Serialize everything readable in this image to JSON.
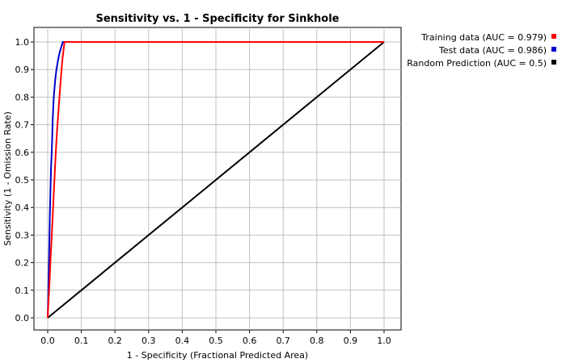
{
  "chart_data": {
    "type": "line",
    "title": "Sensitivity vs. 1 - Specificity for Sinkhole",
    "xlabel": "1 - Specificity  (Fractional Predicted Area)",
    "ylabel": "Sensitivity  (1 - Omission Rate)",
    "xlim": [
      0,
      1
    ],
    "ylim": [
      0,
      1
    ],
    "grid": true,
    "legend_position": "right",
    "x_ticks": [
      "0.0",
      "0.1",
      "0.2",
      "0.3",
      "0.4",
      "0.5",
      "0.6",
      "0.7",
      "0.8",
      "0.9",
      "1.0"
    ],
    "y_ticks": [
      "0.0",
      "0.1",
      "0.2",
      "0.3",
      "0.4",
      "0.5",
      "0.6",
      "0.7",
      "0.8",
      "0.9",
      "1.0"
    ],
    "series": [
      {
        "name": "Training data (AUC = 0.979)",
        "color": "#ff0000",
        "x": [
          0.0,
          0.002,
          0.005,
          0.008,
          0.012,
          0.016,
          0.02,
          0.024,
          0.028,
          0.032,
          0.036,
          0.04,
          0.044,
          0.048,
          0.05,
          0.06,
          0.2,
          0.5,
          0.8,
          1.0
        ],
        "y": [
          0.0,
          0.05,
          0.12,
          0.2,
          0.3,
          0.4,
          0.5,
          0.6,
          0.68,
          0.75,
          0.82,
          0.88,
          0.94,
          0.98,
          1.0,
          1.0,
          1.0,
          1.0,
          1.0,
          1.0
        ]
      },
      {
        "name": "Test data (AUC = 0.986)",
        "color": "#0000cc",
        "x": [
          0.0,
          0.002,
          0.004,
          0.006,
          0.008,
          0.01,
          0.012,
          0.015,
          0.018,
          0.022,
          0.026,
          0.03,
          0.035,
          0.04,
          0.045,
          0.05,
          0.1,
          0.5,
          1.0
        ],
        "y": [
          0.0,
          0.1,
          0.22,
          0.35,
          0.45,
          0.55,
          0.6,
          0.72,
          0.8,
          0.86,
          0.9,
          0.93,
          0.96,
          0.98,
          1.0,
          1.0,
          1.0,
          1.0,
          1.0
        ]
      },
      {
        "name": "Random Prediction (AUC = 0.5)",
        "color": "#000000",
        "x": [
          0.0,
          1.0
        ],
        "y": [
          0.0,
          1.0
        ]
      }
    ]
  }
}
